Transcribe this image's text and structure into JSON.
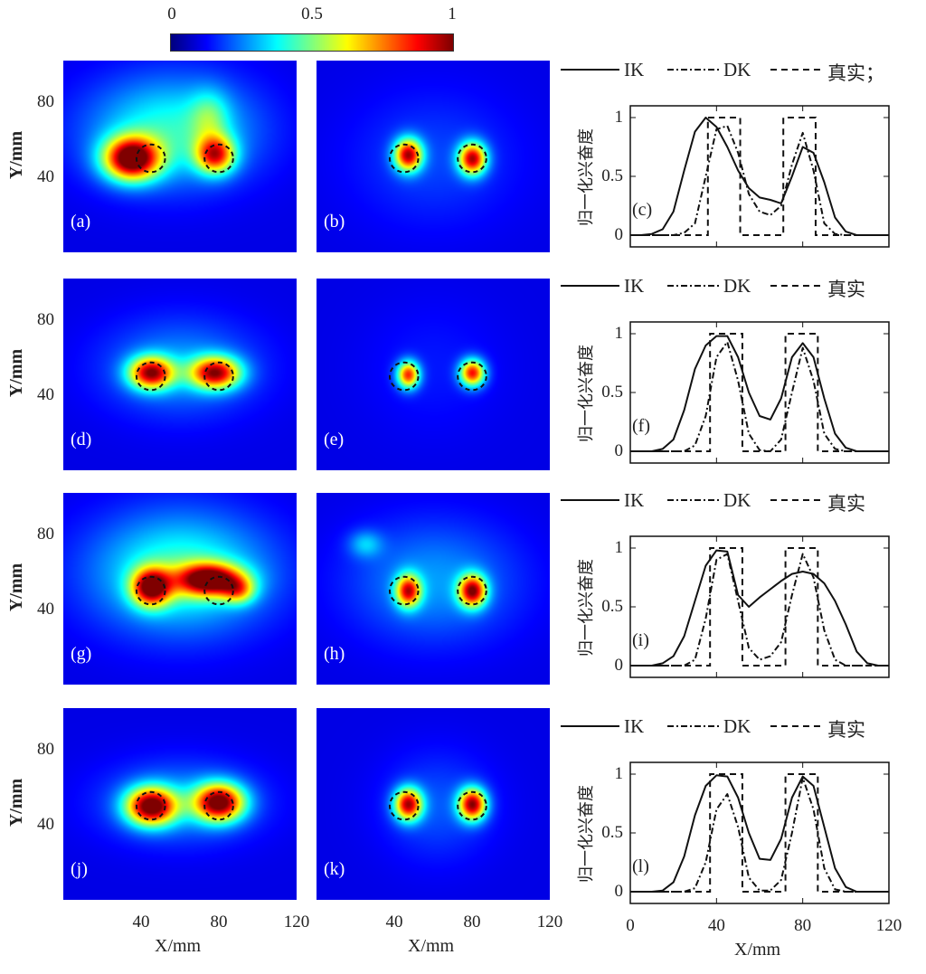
{
  "colorbar": {
    "ticks": [
      "0",
      "0.5",
      "1"
    ],
    "range": [
      0,
      1
    ],
    "colormap": "jet"
  },
  "heatmap_axes": {
    "xlabel": "X/mm",
    "ylabel": "Y/mm",
    "xticks": [
      "40",
      "80",
      "120"
    ],
    "yticks": [
      "40",
      "80"
    ],
    "xlim": [
      0,
      120
    ],
    "ylim": [
      0,
      102
    ]
  },
  "target_circles": [
    {
      "x": 45,
      "y": 50,
      "r": 7
    },
    {
      "x": 80,
      "y": 50,
      "r": 7
    }
  ],
  "line_axes": {
    "xlabel": "X/mm",
    "ylabel": "归一化兴奋度",
    "xticks": [
      "0",
      "40",
      "80",
      "120"
    ],
    "yticks": [
      "0",
      "0.5",
      "1"
    ],
    "xlim": [
      0,
      120
    ],
    "ylim": [
      -0.1,
      1.1
    ]
  },
  "chart_data": {
    "type": "line",
    "heatmaps": [
      {
        "label": "(a)",
        "blobs": [
          [
            35,
            50,
            1,
            10,
            8
          ],
          [
            78,
            52,
            0.72,
            7,
            7
          ],
          [
            55,
            65,
            0.35,
            30,
            20
          ],
          [
            75,
            72,
            0.22,
            7,
            10
          ]
        ]
      },
      {
        "label": "(b)",
        "blobs": [
          [
            47,
            52,
            0.88,
            5,
            6
          ],
          [
            80,
            50,
            0.88,
            5,
            6
          ],
          [
            60,
            50,
            0.1,
            30,
            25
          ]
        ]
      },
      {
        "label": "(d)",
        "blobs": [
          [
            45,
            52,
            0.85,
            8,
            6
          ],
          [
            78,
            52,
            0.85,
            9,
            6
          ],
          [
            60,
            55,
            0.2,
            28,
            18
          ]
        ]
      },
      {
        "label": "(e)",
        "blobs": [
          [
            47,
            51,
            0.78,
            4,
            5
          ],
          [
            80,
            52,
            0.82,
            4.5,
            5
          ],
          [
            60,
            55,
            0.05,
            25,
            25
          ]
        ]
      },
      {
        "label": "(g)",
        "blobs": [
          [
            45,
            52,
            0.85,
            7,
            7
          ],
          [
            75,
            56,
            0.9,
            12,
            6
          ],
          [
            90,
            50,
            0.4,
            6,
            5
          ],
          [
            60,
            60,
            0.38,
            32,
            22
          ]
        ]
      },
      {
        "label": "(h)",
        "blobs": [
          [
            47,
            50,
            0.78,
            4.5,
            6
          ],
          [
            80,
            50,
            0.88,
            5,
            6
          ],
          [
            60,
            55,
            0.2,
            30,
            22
          ],
          [
            25,
            75,
            0.2,
            6,
            5
          ]
        ]
      },
      {
        "label": "(j)",
        "blobs": [
          [
            45,
            50,
            0.95,
            9,
            7
          ],
          [
            80,
            52,
            0.95,
            9,
            7
          ],
          [
            60,
            52,
            0.2,
            28,
            15
          ]
        ]
      },
      {
        "label": "(k)",
        "blobs": [
          [
            47,
            51,
            0.88,
            5,
            6
          ],
          [
            80,
            51,
            0.92,
            5,
            6
          ],
          [
            62,
            50,
            0.12,
            20,
            20
          ]
        ]
      }
    ],
    "x": [
      0,
      5,
      10,
      15,
      20,
      25,
      30,
      35,
      40,
      45,
      50,
      55,
      60,
      65,
      70,
      75,
      80,
      85,
      90,
      95,
      100,
      105,
      110,
      115,
      120
    ],
    "profiles": [
      {
        "label": "(c)",
        "legend": [
          "IK",
          "DK",
          "真实；"
        ],
        "IK": [
          0,
          0,
          0.01,
          0.05,
          0.2,
          0.55,
          0.88,
          1.0,
          0.92,
          0.75,
          0.55,
          0.4,
          0.32,
          0.3,
          0.27,
          0.5,
          0.75,
          0.7,
          0.45,
          0.15,
          0.03,
          0,
          0,
          0,
          0
        ],
        "DK": [
          0,
          0,
          0,
          0,
          0,
          0.02,
          0.1,
          0.5,
          0.9,
          0.93,
          0.7,
          0.35,
          0.2,
          0.17,
          0.25,
          0.6,
          0.87,
          0.55,
          0.1,
          0.01,
          0,
          0,
          0,
          0,
          0
        ],
        "true_intervals": [
          [
            36,
            51
          ],
          [
            71,
            86
          ]
        ]
      },
      {
        "label": "(f)",
        "legend": [
          "IK",
          "DK",
          "真实"
        ],
        "IK": [
          0,
          0,
          0,
          0.02,
          0.1,
          0.35,
          0.7,
          0.9,
          0.98,
          0.98,
          0.8,
          0.5,
          0.3,
          0.27,
          0.45,
          0.8,
          0.92,
          0.8,
          0.45,
          0.15,
          0.03,
          0,
          0,
          0,
          0
        ],
        "DK": [
          0,
          0,
          0,
          0,
          0,
          0,
          0.05,
          0.3,
          0.8,
          0.93,
          0.6,
          0.15,
          0.01,
          0,
          0.1,
          0.5,
          0.88,
          0.6,
          0.15,
          0.02,
          0,
          0,
          0,
          0,
          0
        ],
        "true_intervals": [
          [
            37,
            52
          ],
          [
            72,
            87
          ]
        ]
      },
      {
        "label": "(i)",
        "legend": [
          "IK",
          "DK",
          "真实"
        ],
        "IK": [
          0,
          0,
          0,
          0.02,
          0.08,
          0.25,
          0.55,
          0.85,
          0.98,
          0.97,
          0.6,
          0.5,
          0.58,
          0.65,
          0.72,
          0.78,
          0.8,
          0.78,
          0.7,
          0.55,
          0.35,
          0.12,
          0.02,
          0,
          0
        ],
        "DK": [
          0,
          0,
          0,
          0,
          0,
          0,
          0.05,
          0.4,
          0.9,
          0.95,
          0.55,
          0.15,
          0.05,
          0.08,
          0.2,
          0.6,
          0.95,
          0.75,
          0.3,
          0.05,
          0,
          0,
          0,
          0,
          0
        ],
        "true_intervals": [
          [
            37,
            52
          ],
          [
            72,
            87
          ]
        ]
      },
      {
        "label": "(l)",
        "legend": [
          "IK",
          "DK",
          "真实"
        ],
        "IK": [
          0,
          0,
          0,
          0.01,
          0.08,
          0.3,
          0.65,
          0.9,
          0.99,
          0.98,
          0.8,
          0.5,
          0.28,
          0.27,
          0.45,
          0.8,
          0.98,
          0.9,
          0.55,
          0.2,
          0.04,
          0,
          0,
          0,
          0
        ],
        "DK": [
          0,
          0,
          0,
          0,
          0,
          0,
          0.03,
          0.25,
          0.7,
          0.83,
          0.55,
          0.12,
          0.01,
          0.01,
          0.1,
          0.5,
          0.97,
          0.7,
          0.2,
          0.02,
          0,
          0,
          0,
          0,
          0
        ],
        "true_intervals": [
          [
            37,
            52
          ],
          [
            72,
            87
          ]
        ]
      }
    ]
  }
}
